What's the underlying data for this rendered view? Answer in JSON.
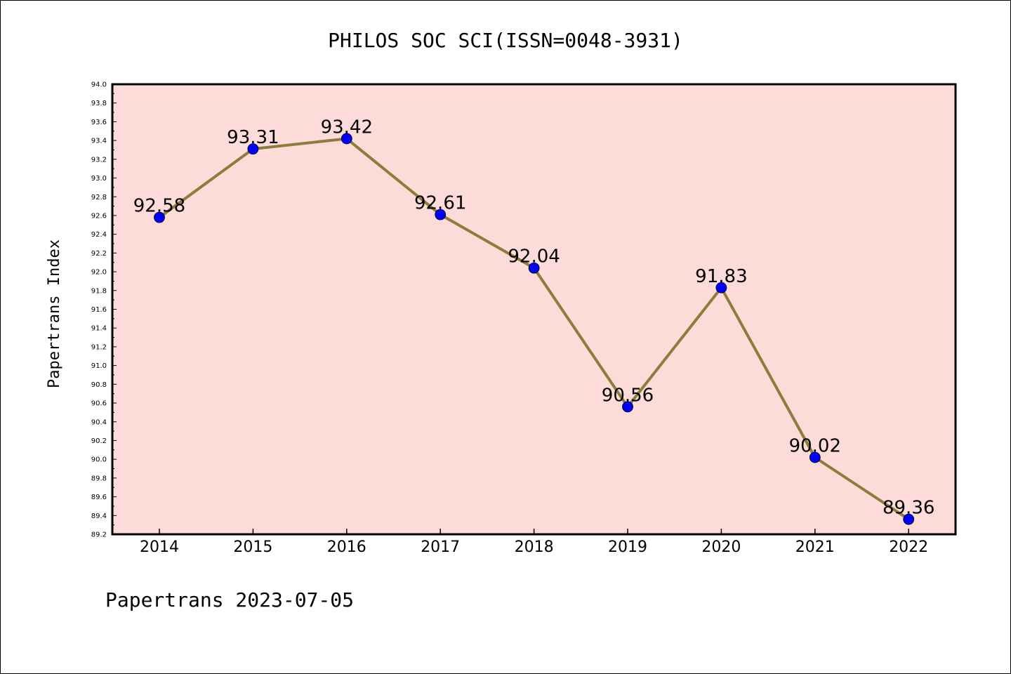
{
  "chart_data": {
    "type": "line",
    "title": "PHILOS SOC SCI(ISSN=0048-3931)",
    "ylabel": "Papertrans Index",
    "xlabel": "",
    "footer": "Papertrans 2023-07-05",
    "categories": [
      "2014",
      "2015",
      "2016",
      "2017",
      "2018",
      "2019",
      "2020",
      "2021",
      "2022"
    ],
    "values": [
      92.58,
      93.31,
      93.42,
      92.61,
      92.04,
      90.56,
      91.83,
      90.02,
      89.36
    ],
    "data_labels": [
      "92.58",
      "93.31",
      "93.42",
      "92.61",
      "92.04",
      "90.56",
      "91.83",
      "90.02",
      "89.36"
    ],
    "ylim": [
      89.2,
      94.0
    ],
    "yticks": [
      "89.2",
      "89.4",
      "89.6",
      "89.8",
      "90.0",
      "90.2",
      "90.4",
      "90.6",
      "90.8",
      "91.0",
      "91.2",
      "91.4",
      "91.6",
      "91.8",
      "92.0",
      "92.2",
      "92.4",
      "92.6",
      "92.8",
      "93.0",
      "93.2",
      "93.4",
      "93.6",
      "93.8",
      "94.0"
    ],
    "grid": false,
    "colors": {
      "plot_background": "#fddbd9",
      "line": "#8b7d3a",
      "marker": "#0000ff"
    }
  }
}
